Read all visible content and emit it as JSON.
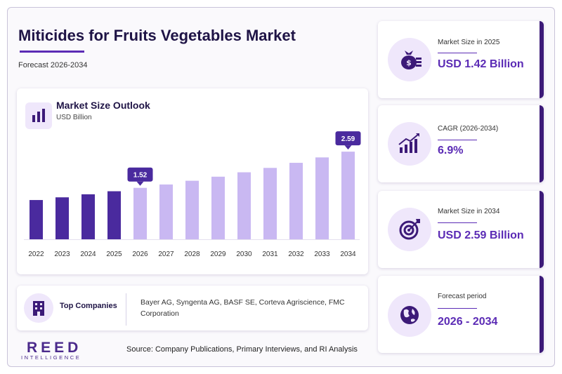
{
  "header": {
    "title": "Miticides for Fruits Vegetables Market",
    "subtitle": "Forecast 2026-2034"
  },
  "chart_data": {
    "type": "bar",
    "title": "Market Size Outlook",
    "unit": "USD Billion",
    "categories": [
      "2022",
      "2023",
      "2024",
      "2025",
      "2026",
      "2027",
      "2028",
      "2029",
      "2030",
      "2031",
      "2032",
      "2033",
      "2034"
    ],
    "values": [
      1.16,
      1.24,
      1.33,
      1.42,
      1.52,
      1.62,
      1.73,
      1.85,
      1.98,
      2.11,
      2.26,
      2.42,
      2.59
    ],
    "callouts": {
      "2026": "1.52",
      "2034": "2.59"
    },
    "historical_color": "#4a2a9e",
    "forecast_color": "#c9b8f2",
    "ylim": [
      0,
      2.8
    ],
    "grid": false
  },
  "companies": {
    "label": "Top Companies",
    "text": "Bayer AG, Syngenta AG, BASF SE, Corteva Agriscience, FMC Corporation"
  },
  "logo": {
    "main": "REED",
    "sub": "INTELLIGENCE"
  },
  "source": "Source: Company Publications, Primary Interviews, and RI Analysis",
  "kpis": [
    {
      "label": "Market Size in 2025",
      "value": "USD 1.42 Billion",
      "icon": "money-bag-icon"
    },
    {
      "label": "CAGR (2026-2034)",
      "value": "6.9%",
      "icon": "growth-chart-icon"
    },
    {
      "label": "Market Size in 2034",
      "value": "USD 2.59 Billion",
      "icon": "target-icon"
    },
    {
      "label": "Forecast period",
      "value": "2026 - 2034",
      "icon": "globe-icon"
    }
  ],
  "colors": {
    "accent": "#5b2bb5",
    "dark": "#1f1446",
    "kpi_border": "#3c1a78",
    "icon_bg": "#efe7fb"
  }
}
